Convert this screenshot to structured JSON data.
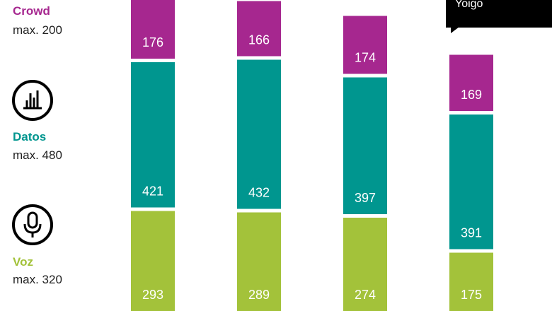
{
  "legend": {
    "crowd": {
      "title": "Crowd",
      "max": "max. 200",
      "color": "#a6278f"
    },
    "datos": {
      "title": "Datos",
      "max": "max. 480",
      "color": "#00968f",
      "icon": "bar-chart-icon"
    },
    "voz": {
      "title": "Voz",
      "max": "max. 320",
      "color": "#a3c23a",
      "icon": "microphone-icon"
    }
  },
  "callout": {
    "text": "Yoigo"
  },
  "chart_data": {
    "type": "bar",
    "stacked": true,
    "categories": [
      "",
      "",
      "",
      "Yoigo"
    ],
    "series": [
      {
        "name": "Voz",
        "values": [
          293,
          289,
          274,
          175
        ],
        "color": "#a3c23a"
      },
      {
        "name": "Datos",
        "values": [
          421,
          432,
          397,
          391
        ],
        "color": "#00968f"
      },
      {
        "name": "Crowd",
        "values": [
          176,
          166,
          174,
          169
        ],
        "color": "#a6278f"
      }
    ]
  }
}
